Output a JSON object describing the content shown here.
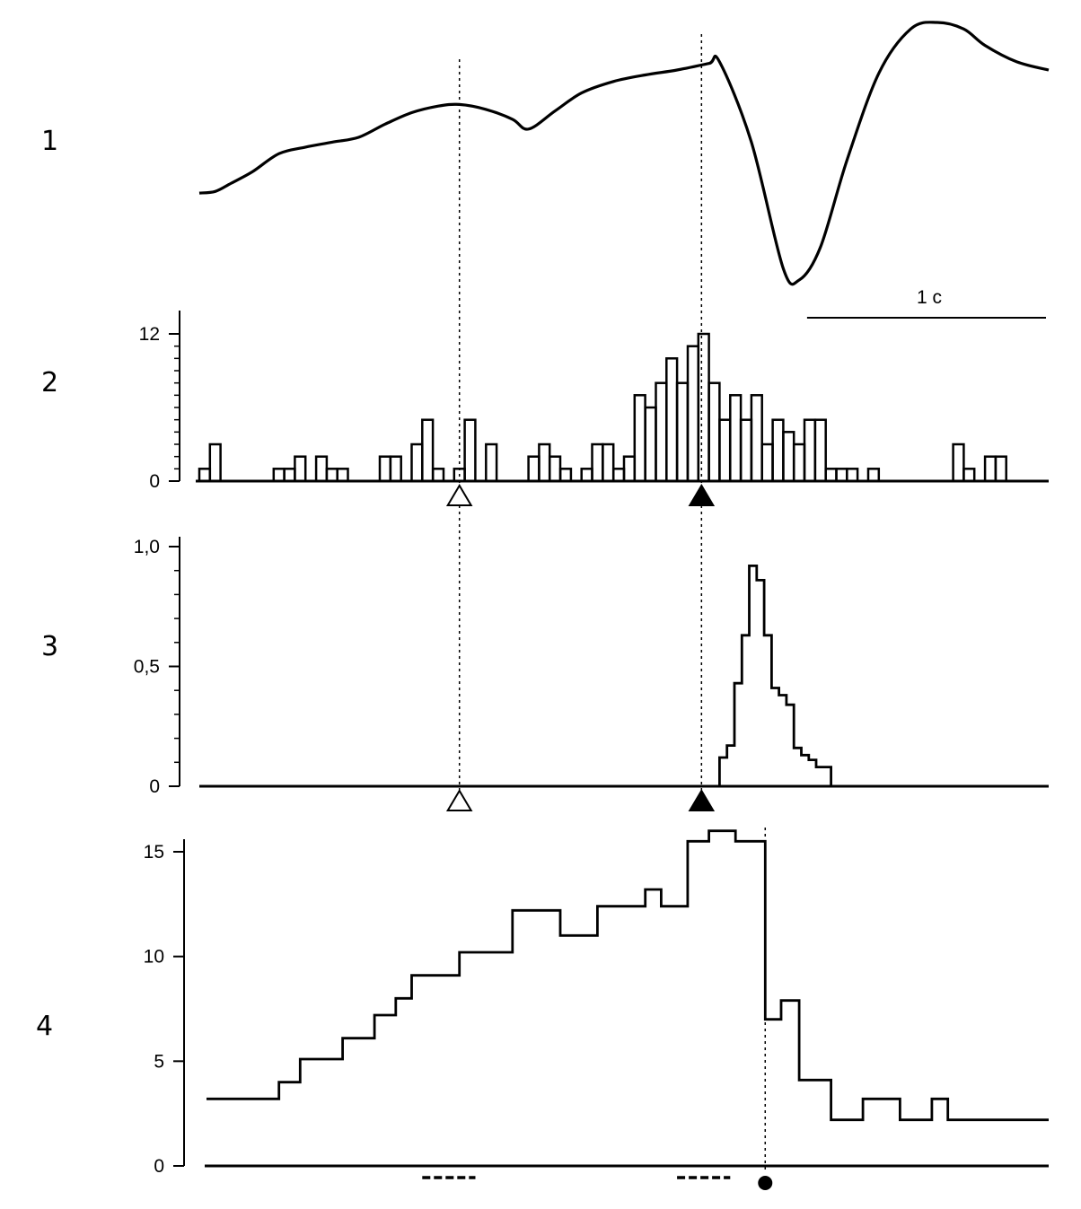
{
  "figure": {
    "row_labels": [
      "1",
      "2",
      "3",
      "4"
    ],
    "scale_bar_label": "1 c",
    "colors": {
      "ink": "#000000",
      "background": "#ffffff"
    },
    "markers": {
      "open_triangle_time": 2.45,
      "filled_triangle_time": 4.73,
      "dot_time": 5.33,
      "dotted_line_1_time": 2.45,
      "dotted_line_2_time": 4.73
    },
    "underscore_bars": [
      [
        2.1,
        2.6
      ],
      [
        4.5,
        5.0
      ]
    ],
    "time_range_s": [
      0,
      8.0
    ],
    "scale_bar_duration_s": 2.25
  },
  "chart_data": [
    {
      "type": "line",
      "name": "panel-1-trace",
      "title": "",
      "xlabel": "",
      "ylabel": "",
      "x": [
        0,
        0.15,
        0.3,
        0.5,
        0.75,
        1.0,
        1.25,
        1.5,
        1.75,
        2.0,
        2.25,
        2.45,
        2.7,
        2.95,
        3.1,
        3.35,
        3.6,
        3.9,
        4.2,
        4.5,
        4.8,
        4.9,
        5.2,
        5.5,
        5.65,
        5.85,
        6.1,
        6.4,
        6.7,
        6.95,
        7.2,
        7.4,
        7.7,
        8.0
      ],
      "y": [
        0.0,
        0.01,
        0.06,
        0.13,
        0.24,
        0.28,
        0.31,
        0.34,
        0.42,
        0.49,
        0.53,
        0.54,
        0.51,
        0.45,
        0.39,
        0.5,
        0.61,
        0.68,
        0.72,
        0.75,
        0.79,
        0.8,
        0.31,
        -0.46,
        -0.53,
        -0.33,
        0.2,
        0.73,
        1.0,
        1.04,
        1.0,
        0.9,
        0.8,
        0.75
      ]
    },
    {
      "type": "bar",
      "name": "panel-2-histogram",
      "title": "",
      "xlabel": "",
      "ylabel": "",
      "y_ticks": [
        "0",
        "12"
      ],
      "ylim": [
        0,
        12
      ],
      "bin_width_s": 0.1,
      "x_start_s": 0,
      "values": [
        1,
        3,
        0,
        0,
        0,
        0,
        0,
        1,
        1,
        2,
        0,
        2,
        1,
        1,
        0,
        0,
        0,
        2,
        2,
        0,
        3,
        5,
        1,
        0,
        1,
        5,
        0,
        3,
        0,
        0,
        0,
        2,
        3,
        2,
        1,
        0,
        1,
        3,
        3,
        1,
        2,
        7,
        6,
        8,
        10,
        8,
        11,
        12,
        8,
        5,
        7,
        5,
        7,
        3,
        5,
        4,
        3,
        5,
        5,
        1,
        1,
        1,
        0,
        1,
        0,
        0,
        0,
        0,
        0,
        0,
        0,
        3,
        1,
        0,
        2,
        2,
        0
      ]
    },
    {
      "type": "bar",
      "name": "panel-3-histogram",
      "title": "",
      "xlabel": "",
      "ylabel": "",
      "y_ticks": [
        "0",
        "0,5",
        "1,0"
      ],
      "ylim": [
        0,
        1.0
      ],
      "bin_width_s": 0.07,
      "x_start_s": 4.9,
      "values": [
        0.12,
        0.17,
        0.43,
        0.63,
        0.92,
        0.86,
        0.63,
        0.41,
        0.38,
        0.34,
        0.16,
        0.13,
        0.11,
        0.08,
        0.08,
        0.0
      ]
    },
    {
      "type": "line",
      "name": "panel-4-step",
      "title": "",
      "xlabel": "",
      "ylabel": "",
      "y_ticks": [
        "0",
        "5",
        "10",
        "15"
      ],
      "ylim": [
        0,
        15
      ],
      "x": [
        0,
        0.75,
        0.95,
        1.35,
        1.65,
        1.85,
        2.0,
        2.2,
        2.45,
        2.8,
        2.95,
        3.4,
        3.75,
        4.2,
        4.35,
        4.6,
        4.8,
        5.05,
        5.33,
        5.48,
        5.65,
        5.95,
        6.25,
        6.6,
        6.9,
        7.05,
        7.5,
        8.0
      ],
      "y": [
        3.2,
        4.0,
        5.1,
        6.1,
        7.2,
        8.0,
        9.1,
        9.1,
        10.2,
        10.2,
        12.2,
        11.0,
        12.4,
        13.2,
        12.4,
        15.5,
        16.0,
        15.5,
        7.0,
        7.9,
        4.1,
        2.2,
        3.2,
        2.2,
        3.2,
        2.2,
        2.2,
        2.2
      ]
    }
  ]
}
